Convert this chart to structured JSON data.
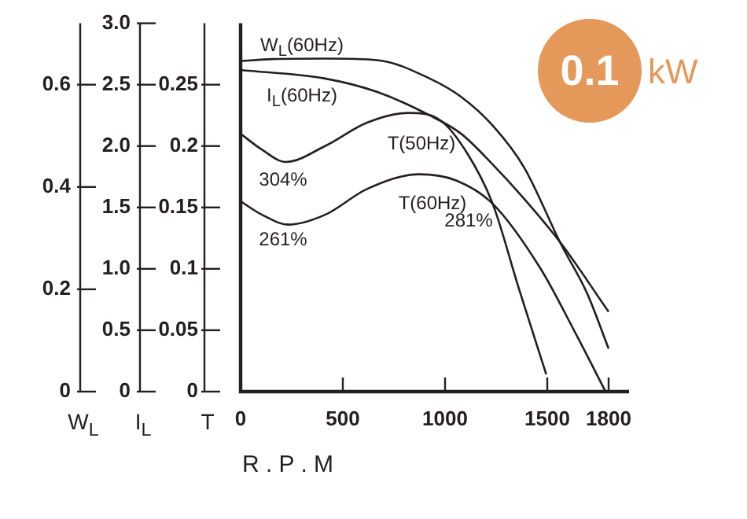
{
  "chart_data": {
    "type": "line",
    "xlabel": "R . P . M",
    "ylabel": "T",
    "y2label": "I$_{L}$",
    "y3label": "W$_{L}$",
    "xlim": [
      0,
      1900
    ],
    "xticks": [
      0,
      500,
      1000,
      1500,
      1800
    ],
    "ylim": [
      0,
      0.3
    ],
    "yticks": [
      0,
      0.05,
      0.1,
      0.15,
      0.2,
      0.25
    ],
    "y2lim": [
      0,
      3
    ],
    "y2ticks": [
      0,
      0.5,
      {
        "value": 1,
        "label": "1.0"
      },
      1.5,
      {
        "value": 2,
        "label": "2.0"
      },
      2.5,
      {
        "value": 3,
        "label": "3.0"
      }
    ],
    "y3lim": [
      0,
      0.72
    ],
    "y3ticks": [
      0,
      0.2,
      0.4,
      0.6
    ],
    "grid": false,
    "legend": false,
    "marker": "none",
    "line_style": "solid",
    "series": [
      {
        "axis": "y3",
        "color": "#231f20",
        "x": [
          0,
          156,
          413,
          669,
          925,
          1079,
          1233,
          1387,
          1566,
          1695,
          1800
        ],
        "values": [
          0.646,
          0.65,
          0.651,
          0.648,
          0.612,
          0.576,
          0.52,
          0.438,
          0.289,
          0.192,
          0.084
        ]
      },
      {
        "axis": "y2",
        "color": "#231f20",
        "x": [
          0,
          413,
          669,
          925,
          1079,
          1233,
          1387,
          1566,
          1800
        ],
        "values": [
          2.62,
          2.55,
          2.44,
          2.25,
          2.1,
          1.85,
          1.57,
          1.21,
          0.65
        ]
      },
      {
        "axis": "y",
        "color": "#231f20",
        "x": [
          0,
          105,
          221,
          413,
          618,
          823,
          977,
          1105,
          1233,
          1361,
          1495
        ],
        "values": [
          0.21,
          0.197,
          0.187,
          0.2,
          0.219,
          0.227,
          0.221,
          0.195,
          0.153,
          0.084,
          0.014
        ]
      },
      {
        "axis": "y",
        "color": "#231f20",
        "x": [
          0,
          105,
          233,
          413,
          618,
          874,
          1054,
          1233,
          1464,
          1643,
          1785
        ],
        "values": [
          0.155,
          0.144,
          0.136,
          0.144,
          0.165,
          0.177,
          0.172,
          0.153,
          0.101,
          0.046,
          0
        ]
      }
    ],
    "annotations": [
      "0.1",
      "kW",
      "W$_{L}$(60Hz)",
      "I$_{L}$(60Hz)",
      "T(50Hz)",
      "304%",
      "T(60Hz)",
      "261%",
      "281%"
    ]
  }
}
